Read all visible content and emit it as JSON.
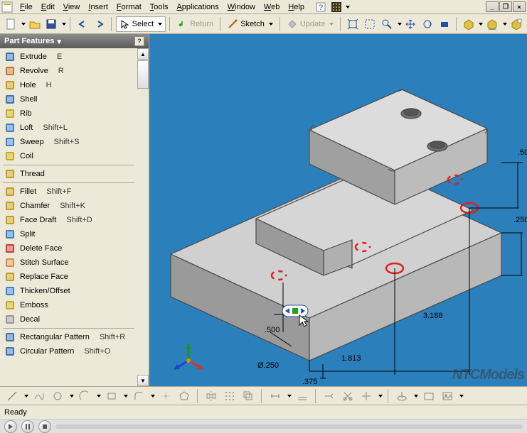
{
  "menubar": {
    "items": [
      "File",
      "Edit",
      "View",
      "Insert",
      "Format",
      "Tools",
      "Applications",
      "Window",
      "Web",
      "Help"
    ]
  },
  "toolbar": {
    "select_label": "Select",
    "return_label": "Return",
    "sketch_label": "Sketch",
    "update_label": "Update"
  },
  "panel": {
    "title": "Part Features",
    "groups": [
      [
        {
          "icon": "extrude-icon",
          "label": "Extrude",
          "shortcut": "E",
          "color": "#1e5aa8"
        },
        {
          "icon": "revolve-icon",
          "label": "Revolve",
          "shortcut": "R",
          "color": "#c06010"
        },
        {
          "icon": "hole-icon",
          "label": "Hole",
          "shortcut": "H",
          "color": "#b89000"
        },
        {
          "icon": "shell-icon",
          "label": "Shell",
          "shortcut": "",
          "color": "#1e5aa8"
        },
        {
          "icon": "rib-icon",
          "label": "Rib",
          "shortcut": "",
          "color": "#c0a000"
        },
        {
          "icon": "loft-icon",
          "label": "Loft",
          "shortcut": "Shift+L",
          "color": "#2070c0"
        },
        {
          "icon": "sweep-icon",
          "label": "Sweep",
          "shortcut": "Shift+S",
          "color": "#2070c0"
        },
        {
          "icon": "coil-icon",
          "label": "Coil",
          "shortcut": "",
          "color": "#c0a000"
        }
      ],
      [
        {
          "icon": "thread-icon",
          "label": "Thread",
          "shortcut": "",
          "color": "#b89000"
        }
      ],
      [
        {
          "icon": "fillet-icon",
          "label": "Fillet",
          "shortcut": "Shift+F",
          "color": "#b89000"
        },
        {
          "icon": "chamfer-icon",
          "label": "Chamfer",
          "shortcut": "Shift+K",
          "color": "#b89000"
        },
        {
          "icon": "facedraft-icon",
          "label": "Face Draft",
          "shortcut": "Shift+D",
          "color": "#b89000"
        },
        {
          "icon": "split-icon",
          "label": "Split",
          "shortcut": "",
          "color": "#2070c0"
        },
        {
          "icon": "deleteface-icon",
          "label": "Delete Face",
          "shortcut": "",
          "color": "#c02020"
        },
        {
          "icon": "stitch-icon",
          "label": "Stitch Surface",
          "shortcut": "",
          "color": "#d08030"
        },
        {
          "icon": "replaceface-icon",
          "label": "Replace Face",
          "shortcut": "",
          "color": "#b89000"
        },
        {
          "icon": "thicken-icon",
          "label": "Thicken/Offset",
          "shortcut": "",
          "color": "#2070c0"
        },
        {
          "icon": "emboss-icon",
          "label": "Emboss",
          "shortcut": "",
          "color": "#c0a000"
        },
        {
          "icon": "decal-icon",
          "label": "Decal",
          "shortcut": "",
          "color": "#888"
        }
      ],
      [
        {
          "icon": "rectpat-icon",
          "label": "Rectangular Pattern",
          "shortcut": "Shift+R",
          "color": "#1e5aa8"
        },
        {
          "icon": "circpat-icon",
          "label": "Circular Pattern",
          "shortcut": "Shift+O",
          "color": "#1e5aa8"
        }
      ]
    ]
  },
  "viewport": {
    "background_color": "#2b7fba",
    "dimensions": {
      "d1": ".500",
      "d2": ".375",
      "d3": "1.813",
      "d4": "3.188",
      "d5": "Ø.250",
      "d6": ".250",
      "d7": ".50"
    },
    "triad_colors": {
      "x": "#e03020",
      "y": "#209020",
      "z": "#2040d0"
    },
    "marker_color": "#e02020",
    "model_face_color": "#c2c2c2",
    "model_edge_color": "#4a4a4a"
  },
  "statusbar": {
    "text": "Ready"
  },
  "watermark": "NTCModels"
}
